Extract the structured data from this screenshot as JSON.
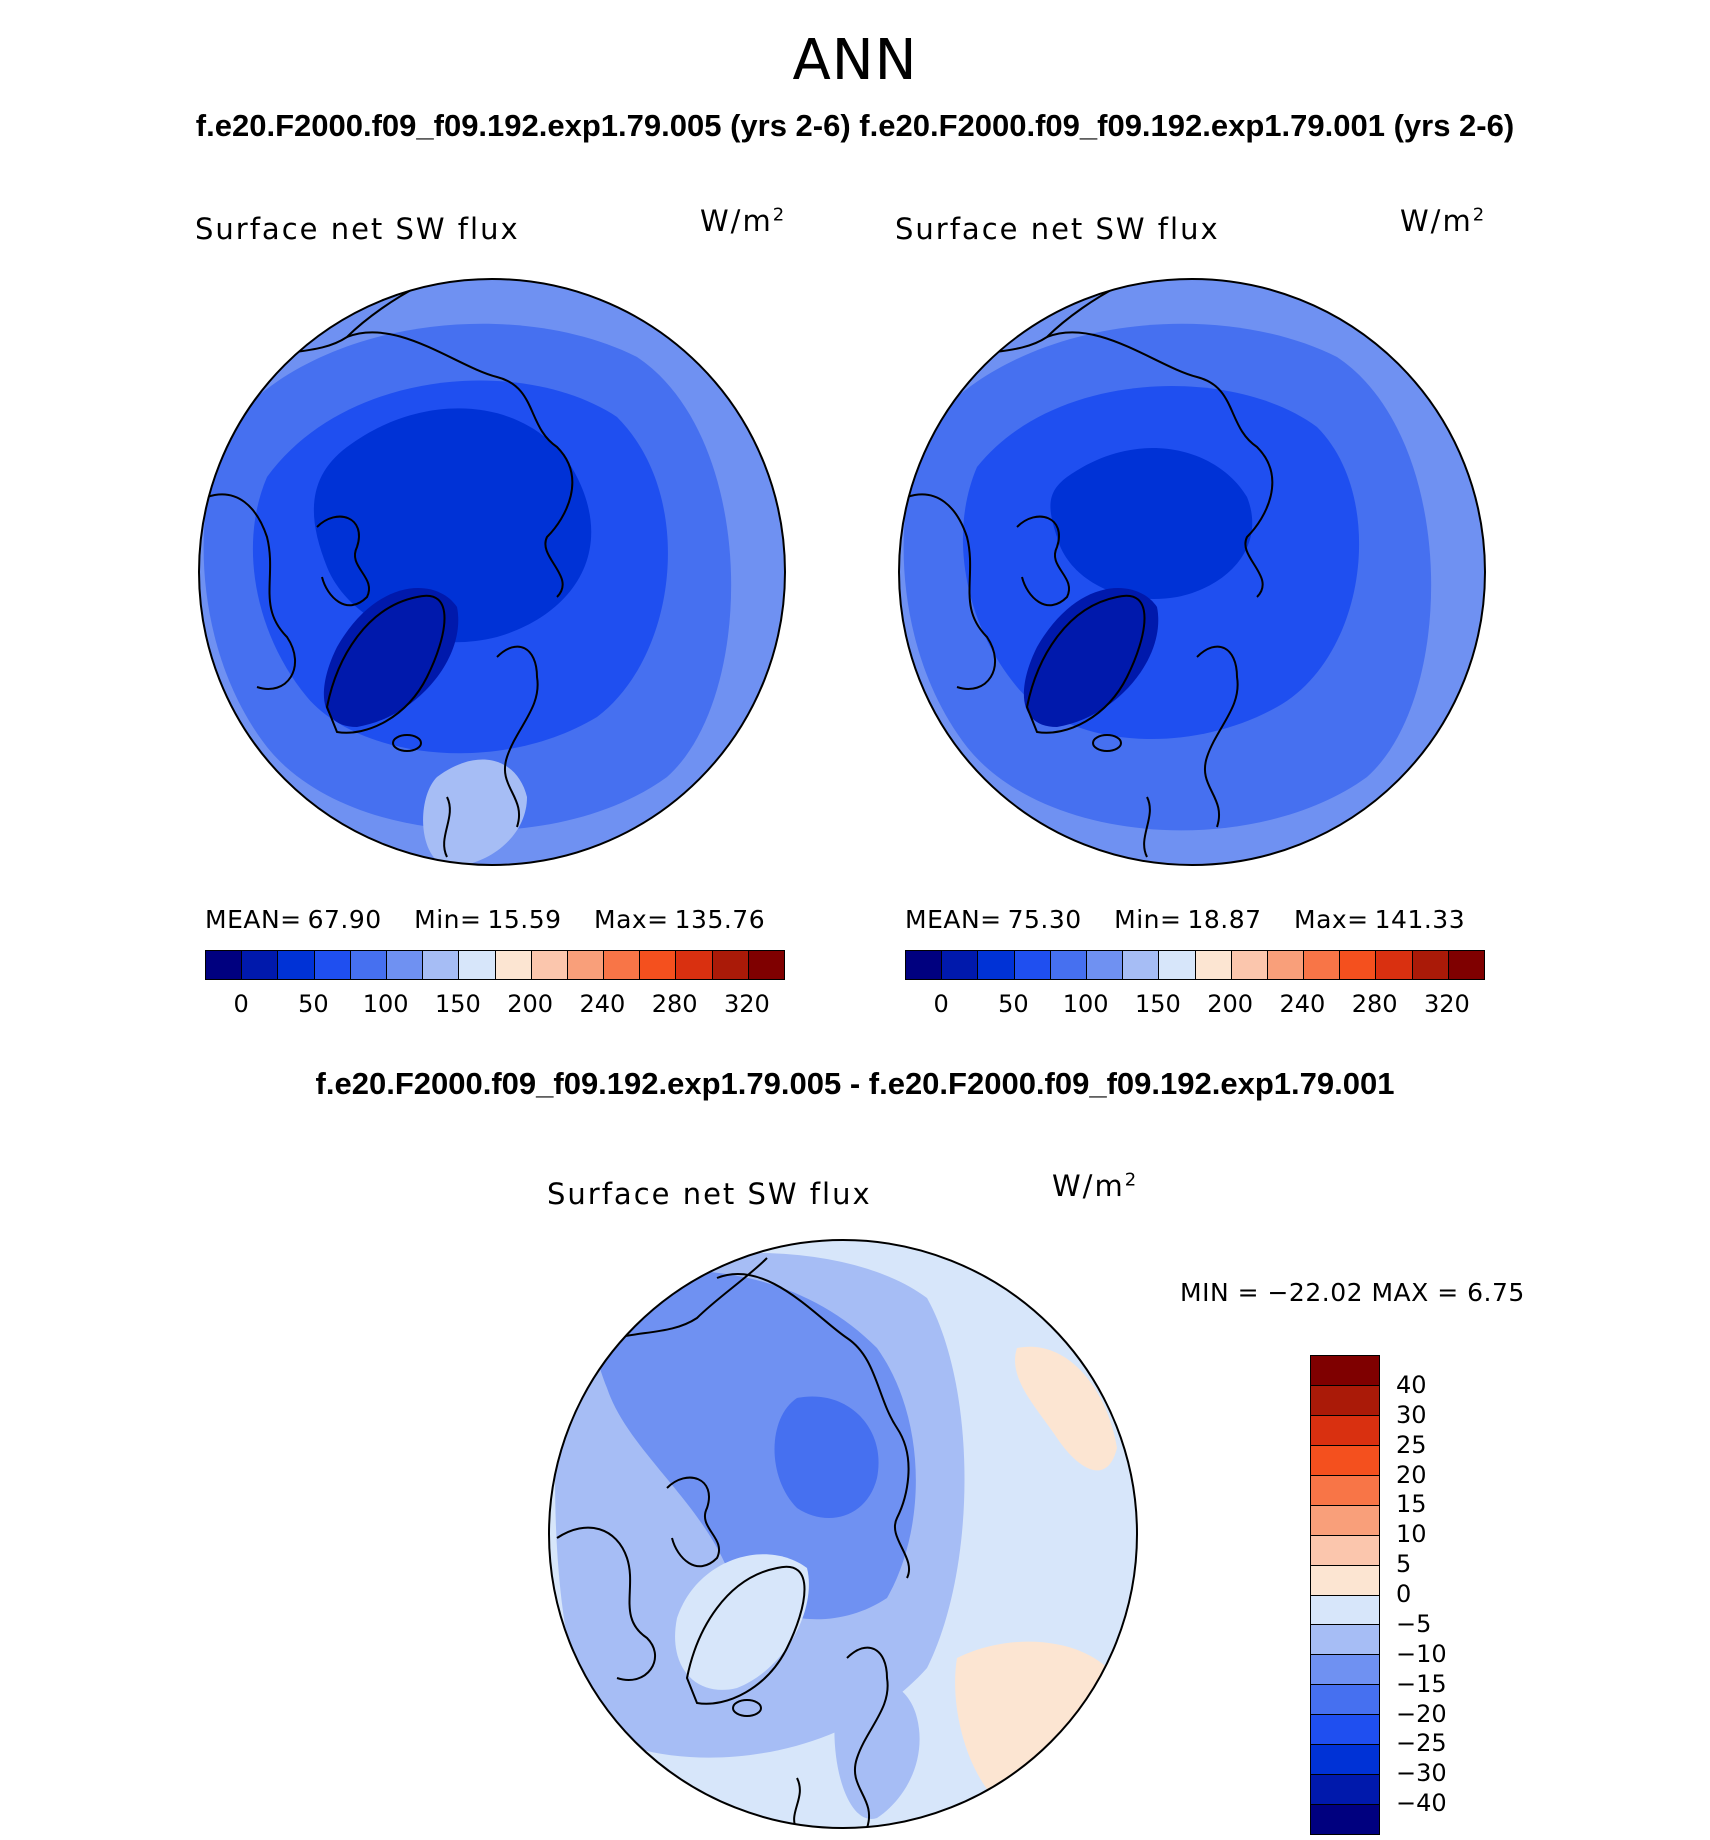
{
  "header": {
    "season": "ANN",
    "case_line": "f.e20.F2000.f09_f09.192.exp1.79.005 (yrs 2-6) f.e20.F2000.f09_f09.192.exp1.79.001 (yrs 2-6)",
    "diff_line": "f.e20.F2000.f09_f09.192.exp1.79.005 - f.e20.F2000.f09_f09.192.exp1.79.001"
  },
  "colors": {
    "abs_scale": [
      "#00007f",
      "#0019ac",
      "#0032d6",
      "#1f4ff0",
      "#4670f0",
      "#6f91f2",
      "#a6bdf5",
      "#d7e6fa",
      "#fce5d2",
      "#fbc6ad",
      "#f99f7a",
      "#f87547",
      "#f4501e",
      "#d93010",
      "#aa1a08",
      "#7f0000"
    ],
    "diff_scale": [
      "#00007f",
      "#0019ac",
      "#0032d6",
      "#1f4ff0",
      "#4670f0",
      "#6f91f2",
      "#a6bdf5",
      "#d7e6fa",
      "#fce5d2",
      "#fbc6ad",
      "#f99f7a",
      "#f87547",
      "#f4501e",
      "#d93010",
      "#aa1a08",
      "#7f0000"
    ]
  },
  "panels": [
    {
      "title": "Surface net SW flux",
      "units_base": "W/m",
      "units_exp": "2",
      "stats": {
        "mean_label": "MEAN=",
        "mean": "67.90",
        "min_label": "Min=",
        "min": "15.59",
        "max_label": "Max=",
        "max": "135.76"
      },
      "ticks": [
        "0",
        "50",
        "100",
        "150",
        "200",
        "240",
        "280",
        "320"
      ]
    },
    {
      "title": "Surface net SW flux",
      "units_base": "W/m",
      "units_exp": "2",
      "stats": {
        "mean_label": "MEAN=",
        "mean": "75.30",
        "min_label": "Min=",
        "min": "18.87",
        "max_label": "Max=",
        "max": "141.33"
      },
      "ticks": [
        "0",
        "50",
        "100",
        "150",
        "200",
        "240",
        "280",
        "320"
      ]
    }
  ],
  "diff_panel": {
    "title": "Surface net SW flux",
    "units_base": "W/m",
    "units_exp": "2",
    "minmax_text": "MIN = −22.02 MAX =     6.75",
    "ticks": [
      "40",
      "30",
      "25",
      "20",
      "15",
      "10",
      "5",
      "0",
      "−5",
      "−10",
      "−15",
      "−20",
      "−25",
      "−30",
      "−40"
    ]
  },
  "chart_data": [
    {
      "type": "heatmap",
      "projection": "north polar stereographic",
      "title": "Surface net SW flux",
      "units": "W/m2",
      "case": "f.e20.F2000.f09_f09.192.exp1.79.005 (yrs 2-6)",
      "mean": 67.9,
      "min": 15.59,
      "max": 135.76,
      "contour_levels": [
        0,
        25,
        50,
        75,
        100,
        125,
        150,
        175,
        200,
        220,
        240,
        260,
        280,
        300,
        320
      ]
    },
    {
      "type": "heatmap",
      "projection": "north polar stereographic",
      "title": "Surface net SW flux",
      "units": "W/m2",
      "case": "f.e20.F2000.f09_f09.192.exp1.79.001 (yrs 2-6)",
      "mean": 75.3,
      "min": 18.87,
      "max": 141.33,
      "contour_levels": [
        0,
        25,
        50,
        75,
        100,
        125,
        150,
        175,
        200,
        220,
        240,
        260,
        280,
        300,
        320
      ]
    },
    {
      "type": "heatmap",
      "projection": "north polar stereographic",
      "title": "Surface net SW flux",
      "units": "W/m2",
      "case": "f.e20.F2000.f09_f09.192.exp1.79.005 - f.e20.F2000.f09_f09.192.exp1.79.001",
      "min": -22.02,
      "max": 6.75,
      "contour_levels": [
        -40,
        -30,
        -25,
        -20,
        -15,
        -10,
        -5,
        0,
        5,
        10,
        15,
        20,
        25,
        30,
        40
      ]
    }
  ]
}
